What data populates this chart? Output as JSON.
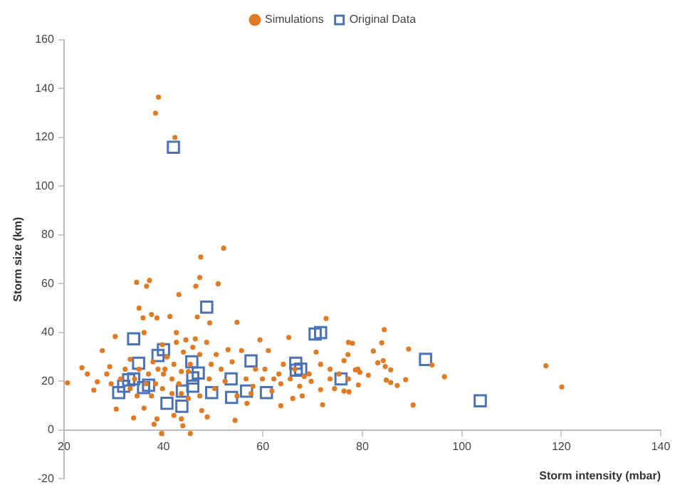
{
  "chart_data": {
    "type": "scatter",
    "xlabel": "Storm intensity (mbar)",
    "ylabel": "Storm size (km)",
    "xlim": [
      20,
      140
    ],
    "xticks": [
      20,
      40,
      60,
      80,
      100,
      120,
      140
    ],
    "ylim": [
      -20,
      160
    ],
    "yticks": [
      -20,
      0,
      20,
      40,
      60,
      80,
      100,
      120,
      140,
      160
    ],
    "grid": false,
    "legend": "top",
    "series": [
      {
        "name": "Simulations",
        "color": "#e07b24",
        "marker": "circle",
        "x": [
          39,
          38.4,
          42.3,
          84.4,
          83.9,
          89.3,
          82.2,
          78,
          77.1,
          76.3,
          83.1,
          84.2,
          84.6,
          85.7,
          78.6,
          79.5,
          81.2,
          84.8,
          88.7,
          85.7,
          87,
          79.2,
          77.3,
          90.2,
          96.5,
          94,
          116.9,
          120.1,
          52.1,
          47.5,
          47.3,
          51,
          34.6,
          37.2,
          36.6,
          43.1,
          46.5,
          35.1,
          35.9,
          37.6,
          38.7,
          41.3,
          54.8,
          46.8,
          49.3,
          23.6,
          20.7,
          24.7,
          27.7,
          30.3,
          29.2,
          26.7,
          26,
          30.5,
          34,
          38.1,
          39.6,
          38.7,
          43.6,
          43.9,
          45.4,
          47.7,
          48.8,
          54.4,
          56.8,
          63.6,
          66,
          67.9,
          72,
          77.2,
          72.7,
          65.2,
          70.7,
          59.4,
          61.1,
          64.1,
          73.5,
          74.4,
          79.1,
          76.3,
          71.6,
          69.3,
          62.2,
          58.5,
          55.7,
          53.8,
          51.6,
          50.3,
          52.4,
          54.8,
          58,
          59.9,
          61.8,
          63.6,
          65.5,
          67.4,
          69.7,
          42.6,
          40.7,
          38.9,
          37,
          35.1,
          33.3,
          32.3,
          31.4,
          29.5,
          28.6,
          33.3,
          34.7,
          36.1,
          37.6,
          39.8,
          41.7,
          43.6,
          45.4,
          47.3,
          48.7,
          44.5,
          41.7,
          43.1,
          45,
          47.3,
          49.2,
          49.6,
          50.6,
          53,
          56.6,
          57.6,
          60.4,
          63.2,
          66.4,
          68.3,
          73.5,
          71.6,
          75.3,
          77.2,
          37.9,
          40,
          36.5,
          34.2,
          38.4,
          40.3,
          42.1,
          44,
          45.9,
          39.8,
          42.6,
          46.4,
          36.1,
          45,
          43.6,
          42.1
        ],
        "values": [
          136.5,
          130,
          120,
          41.2,
          35.8,
          33.2,
          32.4,
          35.6,
          31,
          28.5,
          27.6,
          28.5,
          26.1,
          24.7,
          24.7,
          23.7,
          22.5,
          20.5,
          20.7,
          19.5,
          18.3,
          18.5,
          15.7,
          10.3,
          21.9,
          26.7,
          26.4,
          17.7,
          74.6,
          71,
          62.6,
          60,
          60.6,
          61.4,
          59,
          55.6,
          59,
          50,
          46,
          47.4,
          46,
          46.6,
          44.2,
          46.4,
          44,
          25.6,
          19.4,
          23,
          32.6,
          38.4,
          26,
          19.8,
          16.4,
          8.6,
          5,
          2.4,
          -1.4,
          4.6,
          4.6,
          1.8,
          -1.4,
          8,
          5.4,
          4,
          11,
          10,
          13,
          14,
          10.4,
          36,
          45.8,
          38,
          32,
          37,
          32.6,
          27,
          25,
          17,
          25,
          16,
          16.6,
          23,
          21,
          25,
          32.6,
          28,
          25,
          17,
          20,
          14,
          18,
          21,
          16,
          19,
          21,
          18,
          20,
          36,
          30,
          25,
          23,
          25,
          29,
          25,
          21,
          19,
          23,
          17,
          14,
          9,
          14,
          17,
          21,
          24,
          27,
          31,
          36,
          37,
          15,
          19,
          13,
          14,
          21,
          27,
          31,
          33,
          21,
          15,
          25,
          23,
          25,
          22,
          21,
          27,
          23,
          21,
          28,
          23,
          19,
          21,
          19,
          25,
          27,
          32,
          34,
          35,
          40,
          37.4,
          40,
          24,
          15,
          6
        ]
      },
      {
        "name": "Original Data",
        "color": "#4a72b8",
        "marker": "square",
        "x": [
          31,
          32,
          33,
          34,
          34,
          35,
          36,
          37,
          38.9,
          40,
          40.7,
          43.7,
          43.8,
          45.7,
          45.9,
          45.9,
          47,
          48.7,
          49.7,
          53.6,
          53.7,
          56.7,
          57.6,
          60.7,
          66.6,
          66.7,
          67.6,
          70.5,
          71.6,
          75.7,
          92.7,
          103.7,
          42
        ],
        "values": [
          15.4,
          18,
          20.6,
          21,
          37.4,
          27.4,
          17.4,
          18.4,
          30.6,
          33,
          11,
          9.8,
          16,
          28,
          21.4,
          18,
          23.4,
          50.4,
          15.4,
          21,
          13.4,
          16,
          28.4,
          15.4,
          27.4,
          24.6,
          25,
          39.4,
          40,
          21,
          29,
          12,
          116
        ]
      }
    ]
  }
}
